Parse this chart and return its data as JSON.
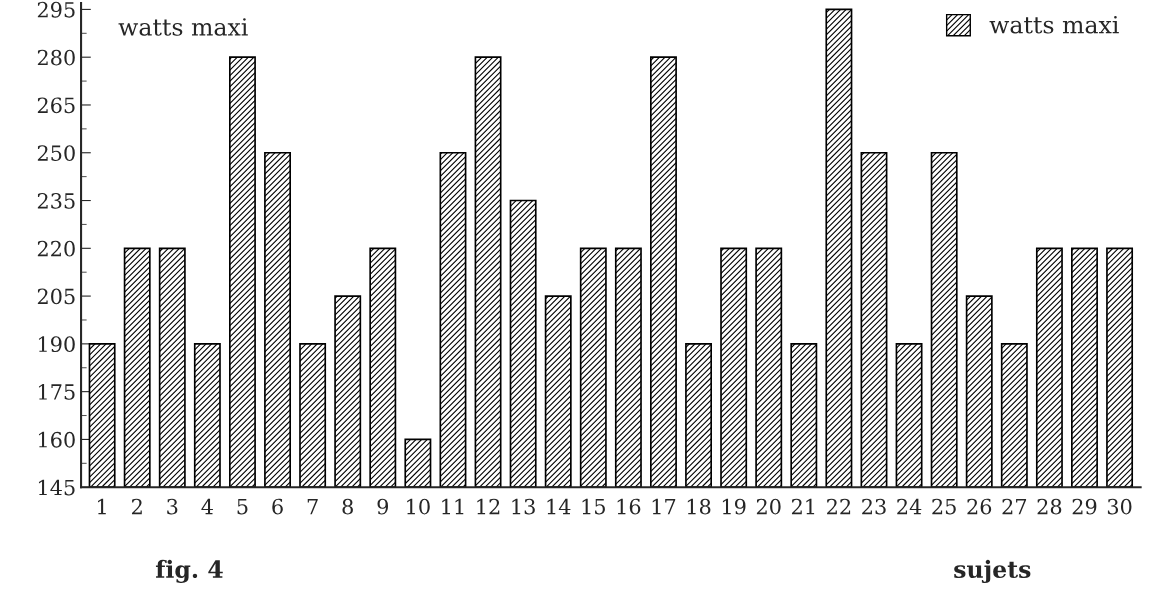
{
  "chart_data": {
    "type": "bar",
    "title": "watts maxi",
    "xlabel": "sujets",
    "annotations": [
      "fig. 4"
    ],
    "categories": [
      "1",
      "2",
      "3",
      "4",
      "5",
      "6",
      "7",
      "8",
      "9",
      "10",
      "11",
      "12",
      "13",
      "14",
      "15",
      "16",
      "17",
      "18",
      "19",
      "20",
      "21",
      "22",
      "23",
      "24",
      "25",
      "26",
      "27",
      "28",
      "29",
      "30"
    ],
    "series": [
      {
        "name": "watts maxi",
        "color": "#000000",
        "values": [
          190,
          220,
          220,
          190,
          280,
          250,
          190,
          205,
          220,
          160,
          250,
          280,
          235,
          205,
          220,
          220,
          280,
          190,
          220,
          220,
          190,
          295,
          250,
          190,
          250,
          205,
          190,
          220,
          220,
          220
        ]
      }
    ],
    "ylim": [
      145,
      297
    ],
    "yticks": [
      145,
      160,
      175,
      190,
      205,
      220,
      235,
      250,
      265,
      280,
      295
    ],
    "grid": false,
    "legend": "top right"
  }
}
